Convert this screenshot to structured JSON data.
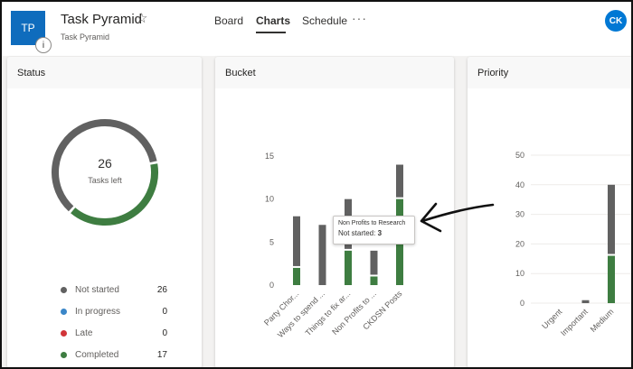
{
  "header": {
    "tile_initials": "TP",
    "info_glyph": "i",
    "title": "Task Pyramid",
    "star_icon": "star-outline-icon",
    "subtitle": "Task Pyramid",
    "tabs": [
      {
        "label": "Board",
        "active": false
      },
      {
        "label": "Charts",
        "active": true
      },
      {
        "label": "Schedule",
        "active": false
      }
    ],
    "more_icon": "ellipsis-icon",
    "avatar_initials": "CK"
  },
  "status_card": {
    "title": "Status",
    "donut_count": "26",
    "donut_caption": "Tasks left",
    "legend": [
      {
        "label": "Not started",
        "count": "26",
        "color": "#616161"
      },
      {
        "label": "In progress",
        "count": "0",
        "color": "#3a86c8"
      },
      {
        "label": "Late",
        "count": "0",
        "color": "#d13438"
      },
      {
        "label": "Completed",
        "count": "17",
        "color": "#3e7d41"
      }
    ]
  },
  "bucket_card": {
    "title": "Bucket",
    "tooltip": {
      "bucket": "Non Profits to Research",
      "status_label": "Not started:",
      "status_value": "3"
    }
  },
  "priority_card": {
    "title": "Priority"
  },
  "annotation": {
    "arrow": "hand-drawn-arrow-icon"
  },
  "chart_data": [
    {
      "type": "pie",
      "title": "Status",
      "categories": [
        "Not started",
        "Completed"
      ],
      "values": [
        26,
        17
      ],
      "colors": [
        "#616161",
        "#3e7d41"
      ]
    },
    {
      "type": "bar",
      "title": "Bucket",
      "stacked": true,
      "categories": [
        "Party Chor...",
        "Ways to spend ...",
        "Things to fix ar...",
        "Non Profits to ...",
        "CKDSN Posts"
      ],
      "series": [
        {
          "name": "Completed",
          "values": [
            2,
            0,
            4,
            1,
            10
          ],
          "color": "#3e7d41"
        },
        {
          "name": "Not started",
          "values": [
            6,
            7,
            6,
            3,
            4
          ],
          "color": "#616161"
        }
      ],
      "ylim": [
        0,
        15
      ],
      "yticks": [
        0,
        5,
        10,
        15
      ]
    },
    {
      "type": "bar",
      "title": "Priority",
      "stacked": true,
      "categories": [
        "Urgent",
        "Important",
        "Medium"
      ],
      "series": [
        {
          "name": "Completed",
          "values": [
            0,
            0,
            16
          ],
          "color": "#3e7d41"
        },
        {
          "name": "Not started",
          "values": [
            0,
            1,
            24
          ],
          "color": "#616161"
        }
      ],
      "ylim": [
        0,
        50
      ],
      "yticks": [
        0,
        10,
        20,
        30,
        40,
        50
      ]
    }
  ]
}
